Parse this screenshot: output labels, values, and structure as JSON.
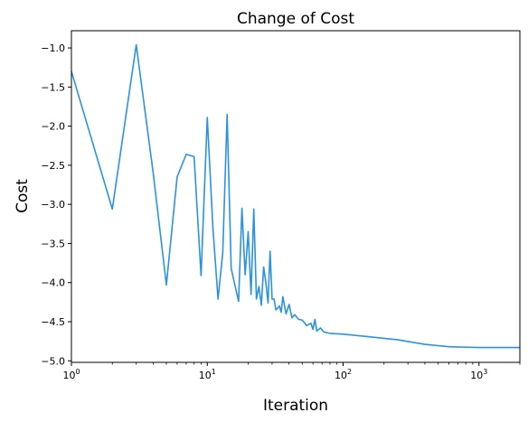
{
  "chart_data": {
    "type": "line",
    "title": "Change of Cost",
    "xlabel": "Iteration",
    "ylabel": "Cost",
    "xscale": "log",
    "xlim": [
      1,
      2000
    ],
    "ylim": [
      -5.02,
      -0.78
    ],
    "grid": false,
    "line_color": "#2a93e0",
    "x_major_ticks": [
      {
        "value": 1,
        "base": "10",
        "exp": "0"
      },
      {
        "value": 10,
        "base": "10",
        "exp": "1"
      },
      {
        "value": 100,
        "base": "10",
        "exp": "2"
      },
      {
        "value": 1000,
        "base": "10",
        "exp": "3"
      }
    ],
    "y_ticks": [
      {
        "value": -1.0,
        "label": "−1.0"
      },
      {
        "value": -1.5,
        "label": "−1.5"
      },
      {
        "value": -2.0,
        "label": "−2.0"
      },
      {
        "value": -2.5,
        "label": "−2.5"
      },
      {
        "value": -3.0,
        "label": "−3.0"
      },
      {
        "value": -3.5,
        "label": "−3.5"
      },
      {
        "value": -4.0,
        "label": "−4.0"
      },
      {
        "value": -4.5,
        "label": "−4.5"
      },
      {
        "value": -5.0,
        "label": "−5.0"
      }
    ],
    "series": [
      {
        "points": [
          [
            1,
            -1.3
          ],
          [
            2,
            -3.06
          ],
          [
            3,
            -0.96
          ],
          [
            4,
            -2.6
          ],
          [
            5,
            -4.03
          ],
          [
            6,
            -2.65
          ],
          [
            7,
            -2.36
          ],
          [
            8,
            -2.39
          ],
          [
            9,
            -3.91
          ],
          [
            10,
            -1.89
          ],
          [
            11,
            -3.3
          ],
          [
            12,
            -4.21
          ],
          [
            13,
            -3.62
          ],
          [
            14,
            -1.85
          ],
          [
            15,
            -3.82
          ],
          [
            17,
            -4.24
          ],
          [
            18,
            -3.05
          ],
          [
            19,
            -3.9
          ],
          [
            20,
            -3.35
          ],
          [
            21,
            -4.15
          ],
          [
            22,
            -3.06
          ],
          [
            23,
            -4.21
          ],
          [
            24,
            -4.05
          ],
          [
            25,
            -4.29
          ],
          [
            26,
            -3.8
          ],
          [
            27,
            -4.0
          ],
          [
            28,
            -4.26
          ],
          [
            29,
            -3.6
          ],
          [
            30,
            -4.21
          ],
          [
            31,
            -4.21
          ],
          [
            32,
            -4.35
          ],
          [
            34,
            -4.3
          ],
          [
            35,
            -4.38
          ],
          [
            36,
            -4.18
          ],
          [
            38,
            -4.4
          ],
          [
            40,
            -4.28
          ],
          [
            42,
            -4.45
          ],
          [
            44,
            -4.41
          ],
          [
            47,
            -4.47
          ],
          [
            50,
            -4.48
          ],
          [
            54,
            -4.55
          ],
          [
            58,
            -4.52
          ],
          [
            60,
            -4.6
          ],
          [
            62,
            -4.47
          ],
          [
            64,
            -4.62
          ],
          [
            68,
            -4.58
          ],
          [
            72,
            -4.63
          ],
          [
            80,
            -4.65
          ],
          [
            100,
            -4.66
          ],
          [
            150,
            -4.69
          ],
          [
            250,
            -4.73
          ],
          [
            400,
            -4.79
          ],
          [
            600,
            -4.82
          ],
          [
            1000,
            -4.83
          ],
          [
            2000,
            -4.83
          ]
        ]
      }
    ]
  }
}
